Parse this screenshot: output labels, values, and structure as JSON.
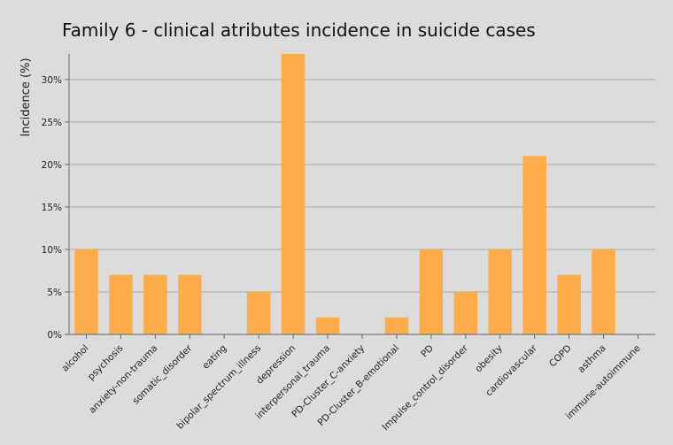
{
  "chart_data": {
    "type": "bar",
    "title": "Family 6 - clinical atributes incidence in suicide cases",
    "xlabel": "",
    "ylabel": "Incidence (%)",
    "categories": [
      "alcohol",
      "psychosis",
      "anxiety-non-trauma",
      "somatic_disorder",
      "eating",
      "bipolar_spectrum_illness",
      "depression",
      "interpersonal_trauma",
      "PD-Cluster_C-anxiety",
      "PD-Cluster_B-emotional",
      "PD",
      "Impulse_control_disorder",
      "obesity",
      "cardiovascular",
      "COPD",
      "asthma",
      "immune-autoimmune"
    ],
    "values": [
      10,
      7,
      7,
      7,
      0,
      5,
      33,
      2,
      0,
      2,
      10,
      5,
      10,
      21,
      7,
      10,
      0
    ],
    "ylim": [
      0,
      33
    ],
    "yticks": [
      0,
      5,
      10,
      15,
      20,
      25,
      30
    ],
    "ytick_labels": [
      "0%",
      "5%",
      "10%",
      "15%",
      "20%",
      "25%",
      "30%"
    ],
    "grid": true,
    "bar_color": "#ffad4a"
  }
}
